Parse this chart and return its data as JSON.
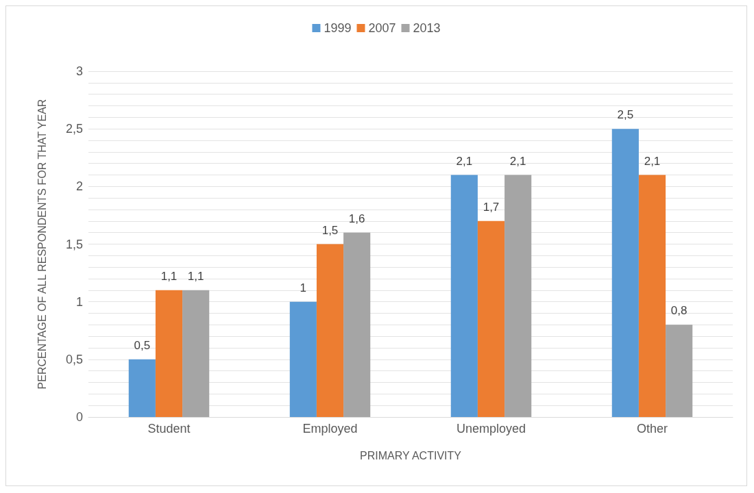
{
  "chart_data": {
    "type": "bar",
    "xlabel": "PRIMARY ACTIVITY",
    "ylabel": "PERCENTAGE OF ALL RESPONDENTS FOR THAT YEAR",
    "categories": [
      "Student",
      "Employed",
      "Unemployed",
      "Other"
    ],
    "series": [
      {
        "name": "1999",
        "color": "#5b9bd5",
        "values": [
          0.5,
          1,
          2.1,
          2.5
        ],
        "value_labels": [
          "0,5",
          "1",
          "2,1",
          "2,5"
        ]
      },
      {
        "name": "2007",
        "color": "#ed7d31",
        "values": [
          1.1,
          1.5,
          1.7,
          2.1
        ],
        "value_labels": [
          "1,1",
          "1,5",
          "1,7",
          "2,1"
        ]
      },
      {
        "name": "2013",
        "color": "#a5a5a5",
        "values": [
          1.1,
          1.6,
          2.1,
          0.8
        ],
        "value_labels": [
          "1,1",
          "1,6",
          "2,1",
          "0,8"
        ]
      }
    ],
    "ylim": [
      0,
      3
    ],
    "yticks": [
      0,
      {
        "value": 0.1,
        "label": null
      },
      {
        "value": 0.2,
        "label": null
      },
      {
        "value": 0.3,
        "label": null
      },
      {
        "value": 0.4,
        "label": null
      },
      {
        "value": 0.5,
        "label": "0,5"
      },
      {
        "value": 0.6,
        "label": null
      },
      {
        "value": 0.7,
        "label": null
      },
      {
        "value": 0.8,
        "label": null
      },
      {
        "value": 0.9,
        "label": null
      },
      1,
      {
        "value": 1.1,
        "label": null
      },
      {
        "value": 1.2,
        "label": null
      },
      {
        "value": 1.3,
        "label": null
      },
      {
        "value": 1.4,
        "label": null
      },
      {
        "value": 1.5,
        "label": "1,5"
      },
      {
        "value": 1.6,
        "label": null
      },
      {
        "value": 1.7,
        "label": null
      },
      {
        "value": 1.8,
        "label": null
      },
      {
        "value": 1.9,
        "label": null
      },
      2,
      {
        "value": 2.1,
        "label": null
      },
      {
        "value": 2.2,
        "label": null
      },
      {
        "value": 2.3,
        "label": null
      },
      {
        "value": 2.4,
        "label": null
      },
      {
        "value": 2.5,
        "label": "2,5"
      },
      {
        "value": 2.6,
        "label": null
      },
      {
        "value": 2.7,
        "label": null
      },
      {
        "value": 2.8,
        "label": null
      },
      {
        "value": 2.9,
        "label": null
      },
      3
    ],
    "grid": "y",
    "legend": "top"
  }
}
